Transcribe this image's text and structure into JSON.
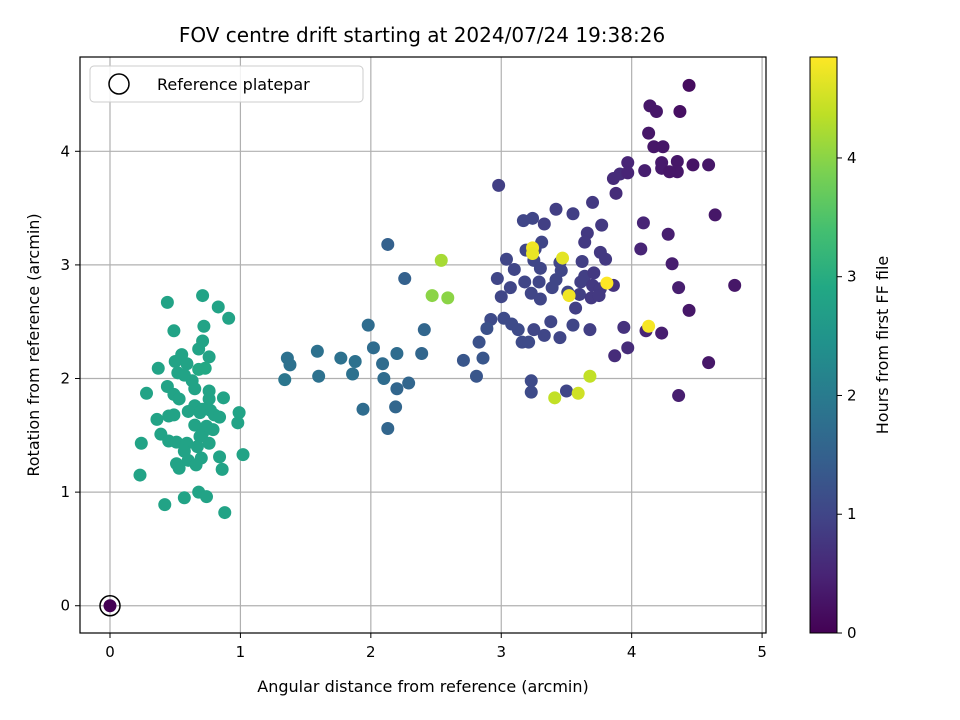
{
  "chart_data": {
    "type": "scatter",
    "title": "FOV centre drift starting at 2024/07/24 19:38:26",
    "xlabel": "Angular distance from reference (arcmin)",
    "ylabel": "Rotation from reference (arcmin)",
    "colorbar_label": "Hours from first FF file",
    "xlim": [
      -0.23,
      5.03
    ],
    "ylim": [
      -0.24,
      4.83
    ],
    "xticks": [
      0,
      1,
      2,
      3,
      4,
      5
    ],
    "yticks": [
      0,
      1,
      2,
      3,
      4
    ],
    "colorbar_range": [
      0,
      4.85
    ],
    "colorbar_ticks": [
      0,
      1,
      2,
      3,
      4
    ],
    "colormap": "viridis",
    "grid": true,
    "legend": {
      "placement": "top-left",
      "entries": [
        "Reference platepar"
      ]
    },
    "reference": {
      "x": 0,
      "y": 0,
      "hour": 0
    },
    "points": [
      [
        4.44,
        4.58,
        0.15
      ],
      [
        4.14,
        4.4,
        0.3
      ],
      [
        4.19,
        4.35,
        0.3
      ],
      [
        4.37,
        4.35,
        0.2
      ],
      [
        4.13,
        4.16,
        0.3
      ],
      [
        4.17,
        4.04,
        0.3
      ],
      [
        4.24,
        4.04,
        0.3
      ],
      [
        3.97,
        3.9,
        0.5
      ],
      [
        4.23,
        3.9,
        0.35
      ],
      [
        4.35,
        3.91,
        0.3
      ],
      [
        4.47,
        3.88,
        0.25
      ],
      [
        4.59,
        3.88,
        0.3
      ],
      [
        4.23,
        3.85,
        0.35
      ],
      [
        4.1,
        3.83,
        0.4
      ],
      [
        3.86,
        3.76,
        0.6
      ],
      [
        3.91,
        3.8,
        0.6
      ],
      [
        3.97,
        3.81,
        0.5
      ],
      [
        4.35,
        3.82,
        0.3
      ],
      [
        4.29,
        3.82,
        0.3
      ],
      [
        2.98,
        3.7,
        0.9
      ],
      [
        3.88,
        3.63,
        0.6
      ],
      [
        3.42,
        3.49,
        0.9
      ],
      [
        3.55,
        3.45,
        0.9
      ],
      [
        3.7,
        3.55,
        0.8
      ],
      [
        4.64,
        3.44,
        0.3
      ],
      [
        3.17,
        3.39,
        1.0
      ],
      [
        3.24,
        3.41,
        1.0
      ],
      [
        3.33,
        3.36,
        0.9
      ],
      [
        3.77,
        3.35,
        0.8
      ],
      [
        4.09,
        3.37,
        0.5
      ],
      [
        4.28,
        3.27,
        0.4
      ],
      [
        3.66,
        3.28,
        0.8
      ],
      [
        3.31,
        3.2,
        1.0
      ],
      [
        3.64,
        3.2,
        0.8
      ],
      [
        3.19,
        3.13,
        1.0
      ],
      [
        3.26,
        3.14,
        1.0
      ],
      [
        4.07,
        3.14,
        0.5
      ],
      [
        3.04,
        3.05,
        1.0
      ],
      [
        3.25,
        3.04,
        1.0
      ],
      [
        3.45,
        3.02,
        1.0
      ],
      [
        3.62,
        3.03,
        0.9
      ],
      [
        3.76,
        3.11,
        0.8
      ],
      [
        3.8,
        3.05,
        0.8
      ],
      [
        3.1,
        2.96,
        1.0
      ],
      [
        3.3,
        2.97,
        1.0
      ],
      [
        3.46,
        2.95,
        1.0
      ],
      [
        3.64,
        2.9,
        0.9
      ],
      [
        3.71,
        2.93,
        0.8
      ],
      [
        4.31,
        3.01,
        0.4
      ],
      [
        2.97,
        2.88,
        1.0
      ],
      [
        3.18,
        2.85,
        1.0
      ],
      [
        3.29,
        2.85,
        1.0
      ],
      [
        3.42,
        2.87,
        1.0
      ],
      [
        3.61,
        2.85,
        0.9
      ],
      [
        3.7,
        2.82,
        0.8
      ],
      [
        3.76,
        2.79,
        0.8
      ],
      [
        3.86,
        2.82,
        0.7
      ],
      [
        4.79,
        2.82,
        0.3
      ],
      [
        3.07,
        2.8,
        1.0
      ],
      [
        3.23,
        2.75,
        1.0
      ],
      [
        3.39,
        2.8,
        1.0
      ],
      [
        3.51,
        2.76,
        1.0
      ],
      [
        3.6,
        2.74,
        0.9
      ],
      [
        3.69,
        2.71,
        0.8
      ],
      [
        3.75,
        2.73,
        0.8
      ],
      [
        3.0,
        2.72,
        1.0
      ],
      [
        3.3,
        2.7,
        1.0
      ],
      [
        4.36,
        2.8,
        0.4
      ],
      [
        3.57,
        2.62,
        0.9
      ],
      [
        4.44,
        2.6,
        0.3
      ],
      [
        2.92,
        2.52,
        1.1
      ],
      [
        3.02,
        2.53,
        1.1
      ],
      [
        3.08,
        2.48,
        1.1
      ],
      [
        3.13,
        2.43,
        1.1
      ],
      [
        3.25,
        2.43,
        1.0
      ],
      [
        3.38,
        2.5,
        1.0
      ],
      [
        3.55,
        2.47,
        1.0
      ],
      [
        3.68,
        2.43,
        0.9
      ],
      [
        3.94,
        2.45,
        0.7
      ],
      [
        4.11,
        2.42,
        0.5
      ],
      [
        4.23,
        2.4,
        0.4
      ],
      [
        2.89,
        2.44,
        1.2
      ],
      [
        3.16,
        2.32,
        1.1
      ],
      [
        3.21,
        2.32,
        1.1
      ],
      [
        3.33,
        2.38,
        1.0
      ],
      [
        3.45,
        2.36,
        1.0
      ],
      [
        2.83,
        2.32,
        1.2
      ],
      [
        3.97,
        2.27,
        0.6
      ],
      [
        3.87,
        2.2,
        0.6
      ],
      [
        4.59,
        2.14,
        0.3
      ],
      [
        2.71,
        2.16,
        1.3
      ],
      [
        2.86,
        2.18,
        1.3
      ],
      [
        2.81,
        2.02,
        1.3
      ],
      [
        3.23,
        1.98,
        1.1
      ],
      [
        3.23,
        1.88,
        1.1
      ],
      [
        3.5,
        1.89,
        1.0
      ],
      [
        4.36,
        1.85,
        0.4
      ],
      [
        3.24,
        3.15,
        4.75
      ],
      [
        3.47,
        3.06,
        4.65
      ],
      [
        3.52,
        2.73,
        4.75
      ],
      [
        3.81,
        2.84,
        4.85
      ],
      [
        4.13,
        2.46,
        4.8
      ],
      [
        3.24,
        3.1,
        4.7
      ],
      [
        2.54,
        3.04,
        4.2
      ],
      [
        2.47,
        2.73,
        4.0
      ],
      [
        2.59,
        2.71,
        4.0
      ],
      [
        3.68,
        2.02,
        4.4
      ],
      [
        3.59,
        1.87,
        4.5
      ],
      [
        3.41,
        1.83,
        4.4
      ],
      [
        2.13,
        3.18,
        1.5
      ],
      [
        2.26,
        2.88,
        1.5
      ],
      [
        1.98,
        2.47,
        1.7
      ],
      [
        2.02,
        2.27,
        1.7
      ],
      [
        2.2,
        2.22,
        1.7
      ],
      [
        2.41,
        2.43,
        1.6
      ],
      [
        2.39,
        2.22,
        1.6
      ],
      [
        1.59,
        2.24,
        1.8
      ],
      [
        1.36,
        2.18,
        1.8
      ],
      [
        1.38,
        2.12,
        1.8
      ],
      [
        1.77,
        2.18,
        1.8
      ],
      [
        1.88,
        2.15,
        1.8
      ],
      [
        2.09,
        2.13,
        1.7
      ],
      [
        1.6,
        2.02,
        1.8
      ],
      [
        1.86,
        2.04,
        1.8
      ],
      [
        2.1,
        2.0,
        1.7
      ],
      [
        1.34,
        1.99,
        1.9
      ],
      [
        2.29,
        1.96,
        1.6
      ],
      [
        2.2,
        1.91,
        1.6
      ],
      [
        1.94,
        1.73,
        1.7
      ],
      [
        2.19,
        1.75,
        1.6
      ],
      [
        2.13,
        1.56,
        1.6
      ],
      [
        0.44,
        2.67,
        2.8
      ],
      [
        0.71,
        2.73,
        2.8
      ],
      [
        0.83,
        2.63,
        2.8
      ],
      [
        0.91,
        2.53,
        2.8
      ],
      [
        0.72,
        2.46,
        2.8
      ],
      [
        0.49,
        2.42,
        2.8
      ],
      [
        0.71,
        2.33,
        2.8
      ],
      [
        0.68,
        2.26,
        2.8
      ],
      [
        0.55,
        2.21,
        2.8
      ],
      [
        0.76,
        2.19,
        2.8
      ],
      [
        0.5,
        2.15,
        2.8
      ],
      [
        0.59,
        2.13,
        2.8
      ],
      [
        0.37,
        2.09,
        2.8
      ],
      [
        0.68,
        2.08,
        2.9
      ],
      [
        0.73,
        2.09,
        2.9
      ],
      [
        0.52,
        2.05,
        2.8
      ],
      [
        0.57,
        2.03,
        2.8
      ],
      [
        0.63,
        1.98,
        2.8
      ],
      [
        0.44,
        1.93,
        2.8
      ],
      [
        0.65,
        1.91,
        2.8
      ],
      [
        0.76,
        1.89,
        2.8
      ],
      [
        0.28,
        1.87,
        2.8
      ],
      [
        0.49,
        1.86,
        2.8
      ],
      [
        0.53,
        1.82,
        2.8
      ],
      [
        0.76,
        1.82,
        2.8
      ],
      [
        0.87,
        1.83,
        2.8
      ],
      [
        0.65,
        1.76,
        2.8
      ],
      [
        0.71,
        1.73,
        2.8
      ],
      [
        0.77,
        1.72,
        2.8
      ],
      [
        0.6,
        1.71,
        2.8
      ],
      [
        0.69,
        1.7,
        2.8
      ],
      [
        0.99,
        1.7,
        2.8
      ],
      [
        0.8,
        1.68,
        2.8
      ],
      [
        0.84,
        1.66,
        2.8
      ],
      [
        0.49,
        1.68,
        2.8
      ],
      [
        0.45,
        1.67,
        2.8
      ],
      [
        0.36,
        1.64,
        2.8
      ],
      [
        0.98,
        1.61,
        2.8
      ],
      [
        0.65,
        1.59,
        2.8
      ],
      [
        0.74,
        1.58,
        2.8
      ],
      [
        0.79,
        1.55,
        2.8
      ],
      [
        0.71,
        1.52,
        2.8
      ],
      [
        0.39,
        1.51,
        2.8
      ],
      [
        0.69,
        1.49,
        2.8
      ],
      [
        0.45,
        1.45,
        2.8
      ],
      [
        0.51,
        1.44,
        2.8
      ],
      [
        0.59,
        1.43,
        2.8
      ],
      [
        0.76,
        1.43,
        2.8
      ],
      [
        0.24,
        1.43,
        2.8
      ],
      [
        0.67,
        1.4,
        2.8
      ],
      [
        0.57,
        1.36,
        2.8
      ],
      [
        1.02,
        1.33,
        2.8
      ],
      [
        0.7,
        1.3,
        2.8
      ],
      [
        0.84,
        1.31,
        2.8
      ],
      [
        0.6,
        1.28,
        2.8
      ],
      [
        0.51,
        1.25,
        2.8
      ],
      [
        0.66,
        1.24,
        2.8
      ],
      [
        0.53,
        1.21,
        2.8
      ],
      [
        0.86,
        1.2,
        2.8
      ],
      [
        0.23,
        1.15,
        2.8
      ],
      [
        0.68,
        1.0,
        2.8
      ],
      [
        0.57,
        0.95,
        2.8
      ],
      [
        0.74,
        0.96,
        2.8
      ],
      [
        0.42,
        0.89,
        2.8
      ],
      [
        0.88,
        0.82,
        2.8
      ]
    ]
  }
}
